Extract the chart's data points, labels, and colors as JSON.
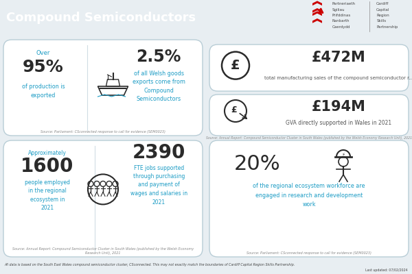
{
  "title": "Compound Semiconductors",
  "header_bg": "#1a9bc4",
  "header_text_color": "#ffffff",
  "bg_color": "#e8eef2",
  "card_bg": "#ffffff",
  "card_edge": "#b8cdd6",
  "blue": "#1a9bc4",
  "dark": "#2a2a2a",
  "gray": "#888888",
  "footer_bg": "#c8d8e0",
  "box1_approx": "Approximately",
  "box1_val1": "1600",
  "box1_desc1": "people employed\nin the regional\necosystem in\n2021",
  "box1_val2": "2390",
  "box1_desc2": "FTE jobs supported\nthrough purchasing\nand payment of\nwages and salaries in\n2021",
  "box1_source": "Source: Annual Report: Compound Semiconductor Cluster in South Wales (published by the Welsh Economy\nResearch Unit), 2021",
  "box2_val": "20%",
  "box2_desc": "of the regional ecosystem workforce are\nengaged in research and development\nwork",
  "box2_source": "Source: Parliament: CSconnected response to call for evidence (SEM0023)",
  "box3_over": "Over",
  "box3_val1": "95%",
  "box3_desc1": "of production is\nexported",
  "box3_val2": "2.5%",
  "box3_desc2": "of all Welsh goods\nexports come from\nCompound\nSemiconductors",
  "box3_source": "Source: Parliament: CSconnected response to call for evidence (SEM0023)",
  "box4_val1": "£472M",
  "box4_desc1": "total manufacturing sales of the compound semiconductor r...",
  "box4_val2": "£194M",
  "box4_desc2": "GVA directly supported in Wales in 2021",
  "box4_source": "Source: Annual Report: Compound Semiconductor Cluster in South Wales (published by the Welsh Economy Research Unit), 2021",
  "logo_col1": [
    "Partneriaeth",
    "Sgiliau",
    "Prifddinas",
    "Ranbarth",
    "Caerdydd"
  ],
  "logo_col2": [
    "Cardiff",
    "Capital",
    "Region",
    "Skills",
    "Partnership"
  ],
  "footer": "All data is based on the South East Wales compound semiconductor cluster, CSconnected. This may not exactly match the boundaries of Cardiff Capital Region Skills Partnership.",
  "footer_right": "Last updated: 07/02/2024"
}
